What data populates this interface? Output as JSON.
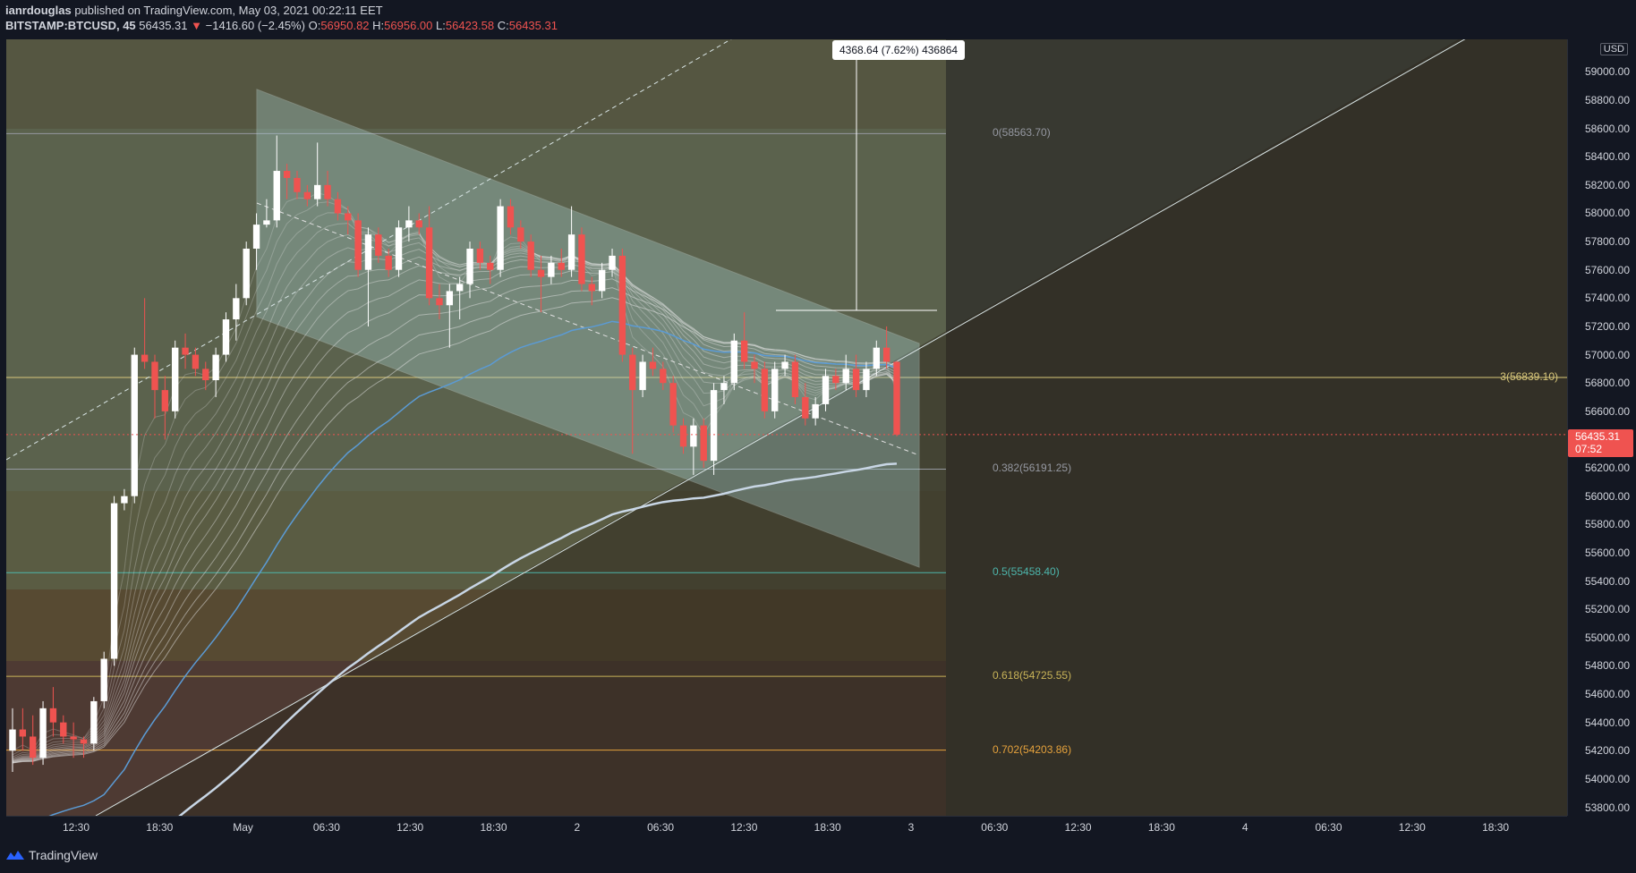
{
  "header": {
    "author": "ianrdouglas",
    "published_text": "published on TradingView.com, May 03, 2021 00:22:11 EET"
  },
  "ohlc": {
    "symbol": "BITSTAMP:BTCUSD, 45",
    "last": "56435.31",
    "change_arrow": "▼",
    "change": "−1416.60 (−2.45%)",
    "o_label": "O:",
    "o_val": "56950.82",
    "h_label": "H:",
    "h_val": "56956.00",
    "l_label": "L:",
    "l_val": "56423.58",
    "c_label": "C:",
    "c_val": "56435.31"
  },
  "price_axis": {
    "currency": "USD",
    "last_price": "56435.31",
    "countdown": "07:52"
  },
  "measure": {
    "label": "4368.64 (7.62%) 436864"
  },
  "fib_levels": [
    {
      "label": "0(58563.70)",
      "price": 58563.7,
      "color": "#9598a1"
    },
    {
      "label": "0.382(56191.25)",
      "price": 56191.25,
      "color": "#9598a1"
    },
    {
      "label": "0.5(55458.40)",
      "price": 55458.4,
      "color": "#4db6ac"
    },
    {
      "label": "0.618(54725.55)",
      "price": 54725.55,
      "color": "#c9b458"
    },
    {
      "label": "0.702(54203.86)",
      "price": 54203.86,
      "color": "#e6a23c"
    }
  ],
  "horizontal_level": {
    "label": "3(56839.10)",
    "price": 56839.1,
    "color": "#d8c77a"
  },
  "footer": {
    "brand": "TradingView"
  },
  "colors": {
    "background": "#131722",
    "up_candle": "#ffffff",
    "down_candle": "#ef5350",
    "channel_fill": "#b2dfdb",
    "fib_zone_upper": "#6b6b4e",
    "fib_zone_lower": "#7d4a3c",
    "ma_blue": "#5b9bd5",
    "ma_white": "#c8d6e5"
  },
  "chart_data": {
    "type": "candlestick",
    "symbol": "BITSTAMP:BTCUSD",
    "interval": "45",
    "y_ticks": [
      53800,
      54000,
      54200,
      54400,
      54600,
      54800,
      55000,
      55200,
      55400,
      55600,
      55800,
      56000,
      56200,
      56400,
      56600,
      56800,
      57000,
      57200,
      57400,
      57600,
      57800,
      58000,
      58200,
      58400,
      58600,
      58800,
      59000
    ],
    "y_tick_labels": [
      "53800.00",
      "54000.00",
      "54200.00",
      "54400.00",
      "54600.00",
      "54800.00",
      "55000.00",
      "55200.00",
      "55400.00",
      "55600.00",
      "55800.00",
      "56000.00",
      "56200.00",
      "56400.00",
      "56600.00",
      "56800.00",
      "57000.00",
      "57200.00",
      "57400.00",
      "57600.00",
      "57800.00",
      "58000.00",
      "58200.00",
      "58400.00",
      "58600.00",
      "58800.00",
      "59000.00"
    ],
    "ylim": [
      53740,
      59230
    ],
    "x_tick_labels": [
      "12:30",
      "18:30",
      "May",
      "06:30",
      "12:30",
      "18:30",
      "2",
      "06:30",
      "12:30",
      "18:30",
      "3",
      "06:30",
      "12:30",
      "18:30",
      "4",
      "06:30",
      "12:30",
      "18:30"
    ],
    "candles": [
      {
        "o": 54200,
        "h": 54500,
        "l": 54050,
        "c": 54350
      },
      {
        "o": 54350,
        "h": 54500,
        "l": 54200,
        "c": 54300
      },
      {
        "o": 54300,
        "h": 54450,
        "l": 54100,
        "c": 54150
      },
      {
        "o": 54150,
        "h": 54550,
        "l": 54100,
        "c": 54500
      },
      {
        "o": 54500,
        "h": 54650,
        "l": 54300,
        "c": 54400
      },
      {
        "o": 54400,
        "h": 54450,
        "l": 54250,
        "c": 54300
      },
      {
        "o": 54300,
        "h": 54400,
        "l": 54150,
        "c": 54280
      },
      {
        "o": 54280,
        "h": 54300,
        "l": 54150,
        "c": 54250
      },
      {
        "o": 54250,
        "h": 54580,
        "l": 54200,
        "c": 54550
      },
      {
        "o": 54550,
        "h": 54900,
        "l": 54500,
        "c": 54850
      },
      {
        "o": 54850,
        "h": 56000,
        "l": 54800,
        "c": 55950
      },
      {
        "o": 55950,
        "h": 56050,
        "l": 55900,
        "c": 56000
      },
      {
        "o": 56000,
        "h": 57050,
        "l": 55950,
        "c": 57000
      },
      {
        "o": 57000,
        "h": 57400,
        "l": 56900,
        "c": 56950
      },
      {
        "o": 56950,
        "h": 57000,
        "l": 56550,
        "c": 56750
      },
      {
        "o": 56750,
        "h": 56850,
        "l": 56400,
        "c": 56600
      },
      {
        "o": 56600,
        "h": 57100,
        "l": 56550,
        "c": 57050
      },
      {
        "o": 57050,
        "h": 57150,
        "l": 56900,
        "c": 57000
      },
      {
        "o": 57000,
        "h": 57050,
        "l": 56850,
        "c": 56900
      },
      {
        "o": 56900,
        "h": 56950,
        "l": 56750,
        "c": 56820
      },
      {
        "o": 56820,
        "h": 57050,
        "l": 56700,
        "c": 57000
      },
      {
        "o": 57000,
        "h": 57300,
        "l": 56950,
        "c": 57250
      },
      {
        "o": 57250,
        "h": 57500,
        "l": 57100,
        "c": 57400
      },
      {
        "o": 57400,
        "h": 57800,
        "l": 57350,
        "c": 57750
      },
      {
        "o": 57750,
        "h": 58000,
        "l": 57600,
        "c": 57920
      },
      {
        "o": 57920,
        "h": 58100,
        "l": 57900,
        "c": 57950
      },
      {
        "o": 57950,
        "h": 58550,
        "l": 57900,
        "c": 58300
      },
      {
        "o": 58300,
        "h": 58350,
        "l": 58100,
        "c": 58250
      },
      {
        "o": 58250,
        "h": 58300,
        "l": 58100,
        "c": 58150
      },
      {
        "o": 58150,
        "h": 58200,
        "l": 58050,
        "c": 58100
      },
      {
        "o": 58100,
        "h": 58500,
        "l": 58050,
        "c": 58200
      },
      {
        "o": 58200,
        "h": 58300,
        "l": 58050,
        "c": 58100
      },
      {
        "o": 58100,
        "h": 58150,
        "l": 57950,
        "c": 58000
      },
      {
        "o": 58000,
        "h": 58050,
        "l": 57850,
        "c": 57950
      },
      {
        "o": 57950,
        "h": 58000,
        "l": 57550,
        "c": 57600
      },
      {
        "o": 57600,
        "h": 57900,
        "l": 57200,
        "c": 57850
      },
      {
        "o": 57850,
        "h": 57900,
        "l": 57650,
        "c": 57700
      },
      {
        "o": 57700,
        "h": 57750,
        "l": 57550,
        "c": 57600
      },
      {
        "o": 57600,
        "h": 57950,
        "l": 57550,
        "c": 57900
      },
      {
        "o": 57900,
        "h": 58050,
        "l": 57800,
        "c": 57950
      },
      {
        "o": 57950,
        "h": 58000,
        "l": 57850,
        "c": 57900
      },
      {
        "o": 57900,
        "h": 58050,
        "l": 57350,
        "c": 57400
      },
      {
        "o": 57400,
        "h": 57500,
        "l": 57250,
        "c": 57350
      },
      {
        "o": 57350,
        "h": 57500,
        "l": 57050,
        "c": 57450
      },
      {
        "o": 57450,
        "h": 57550,
        "l": 57250,
        "c": 57500
      },
      {
        "o": 57500,
        "h": 57800,
        "l": 57400,
        "c": 57750
      },
      {
        "o": 57750,
        "h": 57800,
        "l": 57600,
        "c": 57650
      },
      {
        "o": 57650,
        "h": 57700,
        "l": 57500,
        "c": 57600
      },
      {
        "o": 57600,
        "h": 58100,
        "l": 57550,
        "c": 58050
      },
      {
        "o": 58050,
        "h": 58100,
        "l": 57850,
        "c": 57900
      },
      {
        "o": 57900,
        "h": 57950,
        "l": 57750,
        "c": 57800
      },
      {
        "o": 57800,
        "h": 57850,
        "l": 57550,
        "c": 57600
      },
      {
        "o": 57600,
        "h": 57700,
        "l": 57300,
        "c": 57550
      },
      {
        "o": 57550,
        "h": 57700,
        "l": 57500,
        "c": 57650
      },
      {
        "o": 57650,
        "h": 57750,
        "l": 57550,
        "c": 57600
      },
      {
        "o": 57600,
        "h": 58050,
        "l": 57550,
        "c": 57850
      },
      {
        "o": 57850,
        "h": 57900,
        "l": 57450,
        "c": 57500
      },
      {
        "o": 57500,
        "h": 57550,
        "l": 57350,
        "c": 57450
      },
      {
        "o": 57450,
        "h": 57650,
        "l": 57400,
        "c": 57600
      },
      {
        "o": 57600,
        "h": 57750,
        "l": 57550,
        "c": 57700
      },
      {
        "o": 57700,
        "h": 57750,
        "l": 56950,
        "c": 57000
      },
      {
        "o": 57000,
        "h": 57050,
        "l": 56300,
        "c": 56750
      },
      {
        "o": 56750,
        "h": 57000,
        "l": 56700,
        "c": 56950
      },
      {
        "o": 56950,
        "h": 57050,
        "l": 56850,
        "c": 56900
      },
      {
        "o": 56900,
        "h": 56950,
        "l": 56750,
        "c": 56800
      },
      {
        "o": 56800,
        "h": 56850,
        "l": 56450,
        "c": 56500
      },
      {
        "o": 56500,
        "h": 56550,
        "l": 56300,
        "c": 56350
      },
      {
        "o": 56350,
        "h": 56550,
        "l": 56150,
        "c": 56500
      },
      {
        "o": 56500,
        "h": 56550,
        "l": 56200,
        "c": 56250
      },
      {
        "o": 56250,
        "h": 56800,
        "l": 56150,
        "c": 56750
      },
      {
        "o": 56750,
        "h": 56850,
        "l": 56650,
        "c": 56800
      },
      {
        "o": 56800,
        "h": 57150,
        "l": 56750,
        "c": 57100
      },
      {
        "o": 57100,
        "h": 57300,
        "l": 56900,
        "c": 56950
      },
      {
        "o": 56950,
        "h": 57000,
        "l": 56800,
        "c": 56900
      },
      {
        "o": 56900,
        "h": 56950,
        "l": 56550,
        "c": 56600
      },
      {
        "o": 56600,
        "h": 56950,
        "l": 56550,
        "c": 56900
      },
      {
        "o": 56900,
        "h": 57000,
        "l": 56850,
        "c": 56950
      },
      {
        "o": 56950,
        "h": 57000,
        "l": 56650,
        "c": 56700
      },
      {
        "o": 56700,
        "h": 56800,
        "l": 56500,
        "c": 56550
      },
      {
        "o": 56550,
        "h": 56700,
        "l": 56500,
        "c": 56650
      },
      {
        "o": 56650,
        "h": 56900,
        "l": 56600,
        "c": 56850
      },
      {
        "o": 56850,
        "h": 56900,
        "l": 56750,
        "c": 56800
      },
      {
        "o": 56800,
        "h": 57000,
        "l": 56750,
        "c": 56900
      },
      {
        "o": 56900,
        "h": 57000,
        "l": 56700,
        "c": 56750
      },
      {
        "o": 56750,
        "h": 56950,
        "l": 56700,
        "c": 56900
      },
      {
        "o": 56900,
        "h": 57100,
        "l": 56850,
        "c": 57050
      },
      {
        "o": 57050,
        "h": 57200,
        "l": 56900,
        "c": 56950
      },
      {
        "o": 56950,
        "h": 56956,
        "l": 56423,
        "c": 56435
      }
    ]
  }
}
